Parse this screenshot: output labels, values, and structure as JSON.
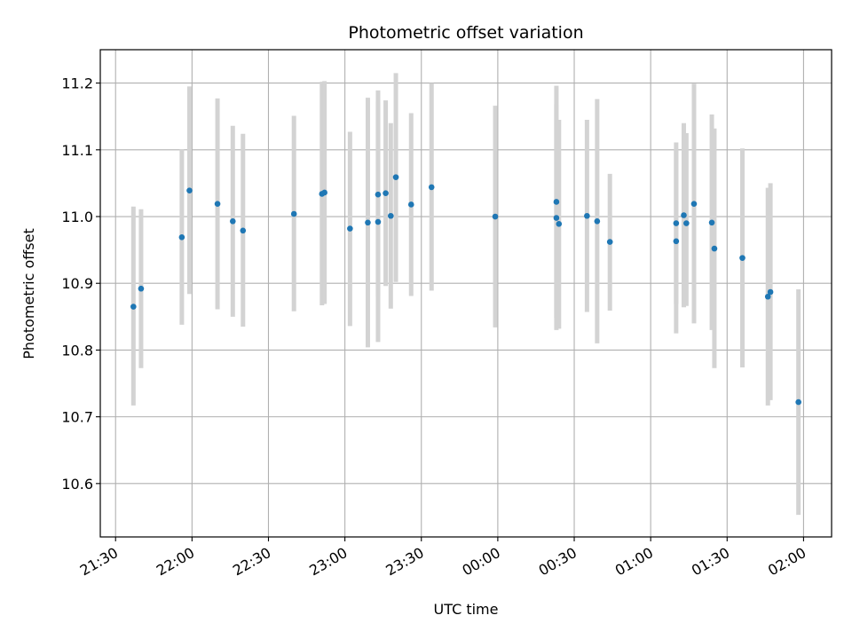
{
  "chart_data": {
    "type": "scatter",
    "title": "Photometric offset variation",
    "xlabel": "UTC time",
    "ylabel": "Photometric offset",
    "x_unit": "UTC time (hh:mm), crossing midnight",
    "xlim": [
      "21:24",
      "02:11"
    ],
    "ylim": [
      10.52,
      11.25
    ],
    "x_ticks": [
      "21:30",
      "22:00",
      "22:30",
      "23:00",
      "23:30",
      "00:00",
      "00:30",
      "01:00",
      "01:30",
      "02:00"
    ],
    "y_ticks": [
      10.6,
      10.7,
      10.8,
      10.9,
      11.0,
      11.1,
      11.2
    ],
    "grid": true,
    "colors": {
      "points": "#1f77b4",
      "errorbars": "#d3d3d3",
      "grid": "#b0b0b0"
    },
    "points": [
      {
        "x": "21:37",
        "y": 10.865,
        "err_low": 10.717,
        "err_high": 11.015
      },
      {
        "x": "21:40",
        "y": 10.892,
        "err_low": 10.773,
        "err_high": 11.011
      },
      {
        "x": "21:56",
        "y": 10.969,
        "err_low": 10.838,
        "err_high": 11.101
      },
      {
        "x": "21:59",
        "y": 11.039,
        "err_low": 10.884,
        "err_high": 11.195
      },
      {
        "x": "22:10",
        "y": 11.019,
        "err_low": 10.861,
        "err_high": 11.177
      },
      {
        "x": "22:16",
        "y": 10.993,
        "err_low": 10.85,
        "err_high": 11.136
      },
      {
        "x": "22:20",
        "y": 10.979,
        "err_low": 10.835,
        "err_high": 11.124
      },
      {
        "x": "22:40",
        "y": 11.004,
        "err_low": 10.858,
        "err_high": 11.151
      },
      {
        "x": "22:51",
        "y": 11.034,
        "err_low": 10.867,
        "err_high": 11.202
      },
      {
        "x": "22:52",
        "y": 11.036,
        "err_low": 10.869,
        "err_high": 11.203
      },
      {
        "x": "23:02",
        "y": 10.982,
        "err_low": 10.836,
        "err_high": 11.127
      },
      {
        "x": "23:09",
        "y": 10.991,
        "err_low": 10.804,
        "err_high": 11.178
      },
      {
        "x": "23:13",
        "y": 10.992,
        "err_low": 10.812,
        "err_high": 11.172
      },
      {
        "x": "23:13",
        "y": 11.033,
        "err_low": 10.88,
        "err_high": 11.189
      },
      {
        "x": "23:16",
        "y": 11.035,
        "err_low": 10.896,
        "err_high": 11.174
      },
      {
        "x": "23:18",
        "y": 11.001,
        "err_low": 10.862,
        "err_high": 11.14
      },
      {
        "x": "23:20",
        "y": 11.059,
        "err_low": 10.902,
        "err_high": 11.215
      },
      {
        "x": "23:26",
        "y": 11.018,
        "err_low": 10.881,
        "err_high": 11.155
      },
      {
        "x": "23:34",
        "y": 11.044,
        "err_low": 10.889,
        "err_high": 11.2
      },
      {
        "x": "23:59",
        "y": 11.0,
        "err_low": 10.834,
        "err_high": 11.166
      },
      {
        "x": "00:23",
        "y": 11.022,
        "err_low": 10.848,
        "err_high": 11.196
      },
      {
        "x": "00:23",
        "y": 10.998,
        "err_low": 10.83,
        "err_high": 11.168
      },
      {
        "x": "00:24",
        "y": 10.989,
        "err_low": 10.832,
        "err_high": 11.145
      },
      {
        "x": "00:35",
        "y": 11.001,
        "err_low": 10.857,
        "err_high": 11.145
      },
      {
        "x": "00:39",
        "y": 10.993,
        "err_low": 10.81,
        "err_high": 11.176
      },
      {
        "x": "00:44",
        "y": 10.962,
        "err_low": 10.859,
        "err_high": 11.064
      },
      {
        "x": "01:10",
        "y": 10.963,
        "err_low": 10.825,
        "err_high": 11.101
      },
      {
        "x": "01:10",
        "y": 10.99,
        "err_low": 10.869,
        "err_high": 11.111
      },
      {
        "x": "01:13",
        "y": 11.002,
        "err_low": 10.864,
        "err_high": 11.14
      },
      {
        "x": "01:14",
        "y": 10.99,
        "err_low": 10.866,
        "err_high": 11.125
      },
      {
        "x": "01:17",
        "y": 11.019,
        "err_low": 10.84,
        "err_high": 11.199
      },
      {
        "x": "01:24",
        "y": 10.991,
        "err_low": 10.83,
        "err_high": 11.153
      },
      {
        "x": "01:25",
        "y": 10.952,
        "err_low": 10.773,
        "err_high": 11.132
      },
      {
        "x": "01:36",
        "y": 10.938,
        "err_low": 10.774,
        "err_high": 11.102
      },
      {
        "x": "01:46",
        "y": 10.88,
        "err_low": 10.717,
        "err_high": 11.043
      },
      {
        "x": "01:47",
        "y": 10.887,
        "err_low": 10.725,
        "err_high": 11.05
      },
      {
        "x": "01:58",
        "y": 10.722,
        "err_low": 10.553,
        "err_high": 10.891
      }
    ]
  }
}
